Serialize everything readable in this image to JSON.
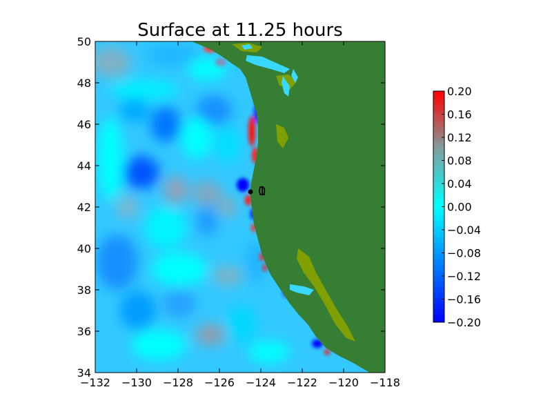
{
  "chart_data": {
    "type": "heatmap",
    "title": "Surface at 11.25 hours",
    "xlabel": "",
    "ylabel": "",
    "xlim": [
      -132,
      -118
    ],
    "ylim": [
      34,
      50
    ],
    "x_ticks": [
      "−132",
      "−130",
      "−128",
      "−126",
      "−124",
      "−122",
      "−120",
      "−118"
    ],
    "y_ticks": [
      "34",
      "36",
      "38",
      "40",
      "42",
      "44",
      "46",
      "48",
      "50"
    ],
    "colorbar": {
      "range": [
        -0.2,
        0.2
      ],
      "ticks": [
        "−0.20",
        "−0.16",
        "−0.12",
        "−0.08",
        "−0.04",
        "0.00",
        "0.04",
        "0.08",
        "0.12",
        "0.16",
        "0.20"
      ],
      "colors": [
        "#0000ff",
        "#00ffff",
        "#7f9f9f",
        "#ff0000"
      ]
    },
    "land_color": "#367e33",
    "lowland_color": "#7fa000",
    "gauges": [
      {
        "label": "0",
        "lon": -124.3,
        "lat": 42.8
      },
      {
        "label": "1",
        "lon": -124.3,
        "lat": 42.8
      }
    ]
  }
}
